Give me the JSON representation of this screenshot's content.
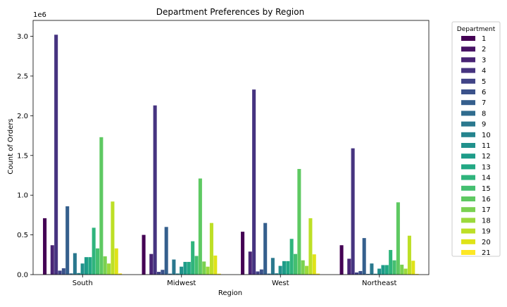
{
  "chart_data": {
    "type": "bar",
    "title": "Department Preferences by Region",
    "xlabel": "Region",
    "ylabel": "Count of Orders",
    "y_offset_label": "1e6",
    "y_scale": 1000000,
    "ylim": [
      0,
      3200000
    ],
    "yticks": [
      0,
      500000,
      1000000,
      1500000,
      2000000,
      2500000,
      3000000
    ],
    "ytick_labels": [
      "0.0",
      "0.5",
      "1.0",
      "1.5",
      "2.0",
      "2.5",
      "3.0"
    ],
    "categories": [
      "South",
      "Midwest",
      "West",
      "Northeast"
    ],
    "legend": {
      "title": "Department",
      "placement": "outside-right"
    },
    "grid": false,
    "series": [
      {
        "name": "1",
        "color": "#440154",
        "values": [
          710000,
          500000,
          540000,
          370000
        ]
      },
      {
        "name": "2",
        "color": "#471365",
        "values": [
          5000,
          4000,
          4000,
          3000
        ]
      },
      {
        "name": "3",
        "color": "#482475",
        "values": [
          370000,
          260000,
          290000,
          200000
        ]
      },
      {
        "name": "4",
        "color": "#463480",
        "values": [
          3020000,
          2130000,
          2330000,
          1590000
        ]
      },
      {
        "name": "5",
        "color": "#414487",
        "values": [
          50000,
          35000,
          40000,
          27000
        ]
      },
      {
        "name": "6",
        "color": "#3b528b",
        "values": [
          80000,
          60000,
          65000,
          45000
        ]
      },
      {
        "name": "7",
        "color": "#355f8d",
        "values": [
          860000,
          600000,
          650000,
          460000
        ]
      },
      {
        "name": "8",
        "color": "#2f6c8e",
        "values": [
          15000,
          12000,
          13000,
          9000
        ]
      },
      {
        "name": "9",
        "color": "#2a788e",
        "values": [
          270000,
          190000,
          210000,
          140000
        ]
      },
      {
        "name": "10",
        "color": "#25848e",
        "values": [
          20000,
          14000,
          16000,
          11000
        ]
      },
      {
        "name": "11",
        "color": "#21918c",
        "values": [
          140000,
          100000,
          110000,
          75000
        ]
      },
      {
        "name": "12",
        "color": "#1e9c89",
        "values": [
          220000,
          160000,
          170000,
          120000
        ]
      },
      {
        "name": "13",
        "color": "#22a884",
        "values": [
          220000,
          160000,
          170000,
          120000
        ]
      },
      {
        "name": "14",
        "color": "#2fb47c",
        "values": [
          590000,
          420000,
          450000,
          310000
        ]
      },
      {
        "name": "15",
        "color": "#44bf70",
        "values": [
          330000,
          235000,
          260000,
          180000
        ]
      },
      {
        "name": "16",
        "color": "#5ec962",
        "values": [
          1730000,
          1210000,
          1330000,
          910000
        ]
      },
      {
        "name": "17",
        "color": "#7ad151",
        "values": [
          230000,
          165000,
          180000,
          125000
        ]
      },
      {
        "name": "18",
        "color": "#9bd93c",
        "values": [
          140000,
          100000,
          110000,
          75000
        ]
      },
      {
        "name": "19",
        "color": "#bddf26",
        "values": [
          920000,
          650000,
          710000,
          490000
        ]
      },
      {
        "name": "20",
        "color": "#dfe318",
        "values": [
          330000,
          240000,
          255000,
          175000
        ]
      },
      {
        "name": "21",
        "color": "#fde725",
        "values": [
          15000,
          12000,
          13000,
          9000
        ]
      }
    ]
  }
}
